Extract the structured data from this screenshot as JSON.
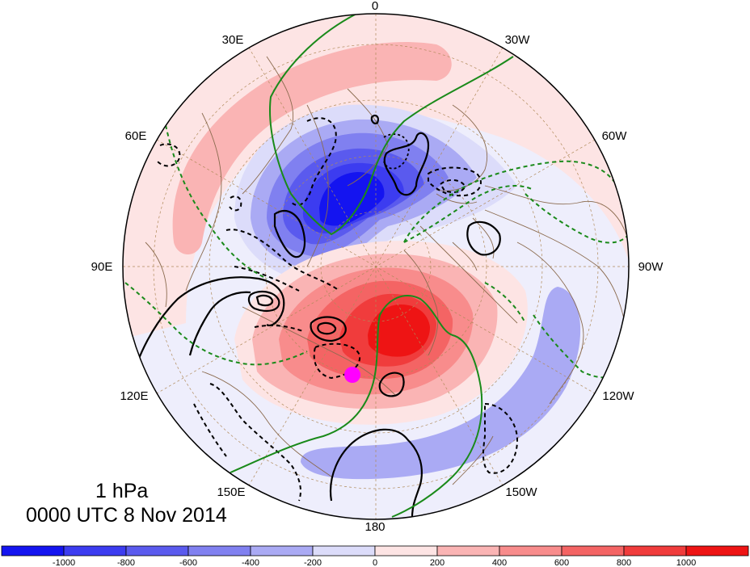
{
  "map": {
    "projection": "north-polar-stereographic",
    "level_label": "1 hPa",
    "time_label": "0000 UTC 8 Nov 2014",
    "longitude_labels": [
      "0",
      "30W",
      "60W",
      "90W",
      "120W",
      "150W",
      "180",
      "150E",
      "120E",
      "90E",
      "60E",
      "30E"
    ],
    "marker": {
      "color": "#ff00ff"
    },
    "colors": {
      "coastline": "#8b6b4f",
      "graticule": "#b08a5a",
      "solid_contour": "#000000",
      "green_contour": "#1a8a1a"
    }
  },
  "colorbar": {
    "labels": [
      "-1000",
      "-800",
      "-600",
      "-400",
      "-200",
      "0",
      "200",
      "400",
      "600",
      "800",
      "1000"
    ],
    "colors": [
      "#1414f0",
      "#3c3cf0",
      "#5a5aee",
      "#8080f0",
      "#aaaaf4",
      "#dcdcfa",
      "#fde4e4",
      "#fab4b4",
      "#f88c8c",
      "#f46464",
      "#f03c3c",
      "#ee1414"
    ]
  }
}
